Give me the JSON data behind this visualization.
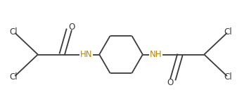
{
  "bg_color": "#ffffff",
  "line_color": "#3a3a3a",
  "nh_color": "#b8860b",
  "atom_color": "#3a3a3a",
  "line_width": 1.3,
  "font_size": 8.5,
  "fig_width": 3.44,
  "fig_height": 1.55,
  "dpi": 100,
  "xlim": [
    0,
    10
  ],
  "ylim": [
    0,
    4.5
  ]
}
